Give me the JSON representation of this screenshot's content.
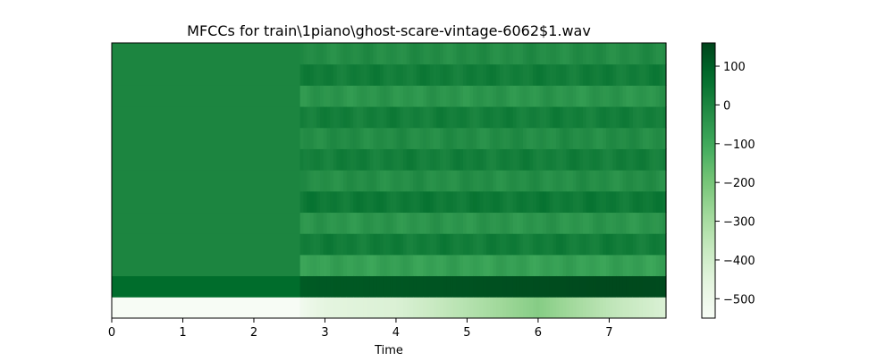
{
  "chart_data": {
    "type": "heatmap",
    "title": "MFCCs for train\\1piano\\ghost-scare-vintage-6062$1.wav",
    "xlabel": "Time",
    "ylabel": "",
    "xlim": [
      0,
      7.8
    ],
    "x_ticks": [
      "0",
      "1",
      "2",
      "3",
      "4",
      "5",
      "6",
      "7"
    ],
    "n_coefficients": 13,
    "silence_end_time": 2.65,
    "colormap": "Greens",
    "colorbar": {
      "range": [
        -550,
        160
      ],
      "ticks": [
        "100",
        "0",
        "−100",
        "−200",
        "−300",
        "−400",
        "−500"
      ]
    },
    "silent_values": [
      -550,
      70,
      0,
      0,
      0,
      0,
      0,
      0,
      0,
      0,
      0,
      0,
      0
    ],
    "time_profile": {
      "c0": [
        [
          2.65,
          -520
        ],
        [
          3.0,
          -460
        ],
        [
          4.0,
          -430
        ],
        [
          5.0,
          -330
        ],
        [
          6.0,
          -230
        ],
        [
          7.0,
          -350
        ],
        [
          7.8,
          -430
        ]
      ],
      "c1": [
        [
          2.65,
          110
        ],
        [
          3.0,
          115
        ],
        [
          4.0,
          120
        ],
        [
          5.0,
          130
        ],
        [
          6.0,
          140
        ],
        [
          7.0,
          150
        ],
        [
          7.8,
          145
        ]
      ]
    },
    "active_coefficient_means": [
      0,
      120,
      -75,
      25,
      -45,
      35,
      -25,
      20,
      -20,
      20,
      -45,
      25,
      -20
    ]
  }
}
